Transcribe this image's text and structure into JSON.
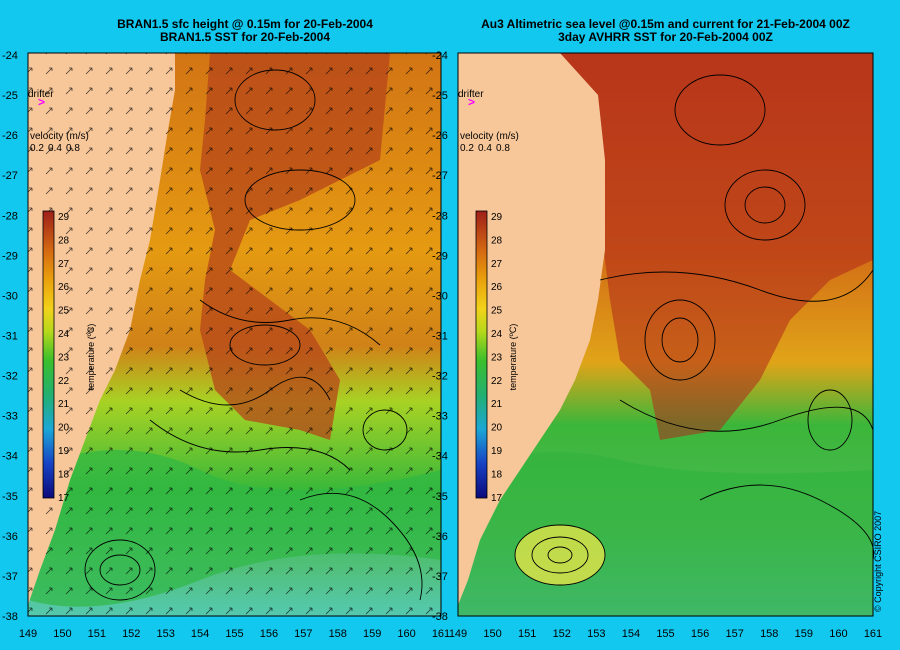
{
  "left_panel": {
    "title_line1": "BRAN1.5 sfc height @ 0.15m for 20-Feb-2004",
    "title_line2": "BRAN1.5 SST for 20-Feb-2004"
  },
  "right_panel": {
    "title_line1": "Au3 Altimetric sea level  @0.15m and current for 21-Feb-2004 00Z",
    "title_line2": "3day AVHRR SST for 20-Feb-2004 00Z"
  },
  "legend": {
    "drifter_label": "drifter",
    "drifter_marker": ">",
    "velocity_label": "velocity (m/s)",
    "velocity_values": [
      "0.2",
      "0.4",
      "0.8"
    ],
    "colorbar_label": "temperature (ºC)",
    "colorbar_ticks": [
      "29",
      "28",
      "27",
      "26",
      "25",
      "24",
      "23",
      "22",
      "21",
      "20",
      "19",
      "18",
      "17"
    ]
  },
  "axes": {
    "lat_ticks": [
      "-24",
      "-25",
      "-26",
      "-27",
      "-28",
      "-29",
      "-30",
      "-31",
      "-32",
      "-33",
      "-34",
      "-35",
      "-36",
      "-37",
      "-38"
    ],
    "lon_ticks": [
      "149",
      "150",
      "151",
      "152",
      "153",
      "154",
      "155",
      "156",
      "157",
      "158",
      "159",
      "160",
      "161"
    ]
  },
  "copyright": "© Copyright CSIRO 2007",
  "colors": {
    "background": "#12c8ef",
    "land": "#f7c79a",
    "warm": "#b0281c",
    "cool": "#2ba844",
    "drifter": "#ff00ff"
  }
}
